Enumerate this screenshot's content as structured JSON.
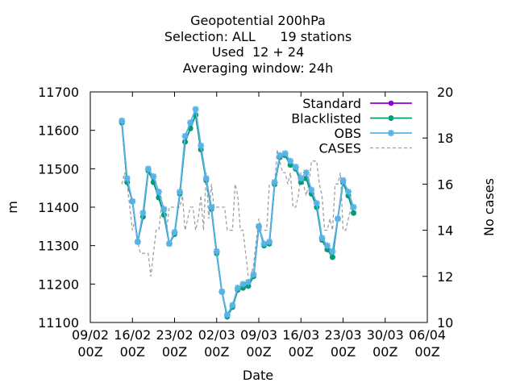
{
  "chart_data": {
    "type": "line",
    "title_lines": [
      "Geopotential 200hPa",
      "Selection: ALL      19 stations",
      "Used  12 + 24",
      "Averaging window: 24h"
    ],
    "xlabel": "Date",
    "ylabel": "m",
    "y2label": "No cases",
    "xlim": [
      0,
      32
    ],
    "ylim": [
      11100,
      11700
    ],
    "y2lim": [
      10,
      20
    ],
    "x_unit": "days since 09/02 00Z",
    "x_ticks": [
      {
        "x": 0,
        "line1": "09/02",
        "line2": "00Z"
      },
      {
        "x": 4,
        "line1": "16/02",
        "line2": "00Z"
      },
      {
        "x": 8,
        "line1": "23/02",
        "line2": "00Z"
      },
      {
        "x": 12,
        "line1": "02/03",
        "line2": "00Z"
      },
      {
        "x": 16,
        "line1": "09/03",
        "line2": "00Z"
      },
      {
        "x": 20,
        "line1": "16/03",
        "line2": "00Z"
      },
      {
        "x": 24,
        "line1": "23/03",
        "line2": "00Z"
      },
      {
        "x": 28,
        "line1": "30/03",
        "line2": "00Z"
      },
      {
        "x": 32,
        "line1": "06/04",
        "line2": "00Z"
      }
    ],
    "y_ticks": [
      "11100",
      "11200",
      "11300",
      "11400",
      "11500",
      "11600",
      "11700"
    ],
    "y2_ticks": [
      "10",
      "12",
      "14",
      "16",
      "18",
      "20"
    ],
    "legend_position": "top-right",
    "series": [
      {
        "name": "Standard",
        "color": "#9400d3",
        "style": "solid",
        "marker": "circle",
        "axis": "y",
        "points": [
          [
            3.0,
            11620
          ],
          [
            3.5,
            11465
          ],
          [
            4.0,
            11415
          ],
          [
            4.5,
            11310
          ],
          [
            5.0,
            11375
          ],
          [
            5.5,
            11495
          ],
          [
            6.0,
            11465
          ],
          [
            6.5,
            11425
          ],
          [
            7.0,
            11380
          ],
          [
            7.5,
            11305
          ],
          [
            8.0,
            11330
          ],
          [
            8.5,
            11435
          ],
          [
            9.0,
            11570
          ],
          [
            9.5,
            11605
          ],
          [
            10.0,
            11640
          ],
          [
            10.5,
            11550
          ],
          [
            11.0,
            11470
          ],
          [
            11.5,
            11395
          ],
          [
            12.0,
            11280
          ],
          [
            12.5,
            11180
          ],
          [
            13.0,
            11115
          ],
          [
            13.5,
            11140
          ],
          [
            14.0,
            11185
          ],
          [
            14.5,
            11190
          ],
          [
            15.0,
            11195
          ],
          [
            15.5,
            11220
          ],
          [
            16.0,
            11350
          ],
          [
            16.5,
            11300
          ],
          [
            17.0,
            11305
          ],
          [
            17.5,
            11460
          ],
          [
            18.0,
            11530
          ],
          [
            18.5,
            11535
          ],
          [
            19.0,
            11510
          ],
          [
            19.5,
            11500
          ],
          [
            20.0,
            11465
          ],
          [
            20.5,
            11475
          ],
          [
            21.0,
            11435
          ],
          [
            21.5,
            11400
          ],
          [
            22.0,
            11315
          ],
          [
            22.5,
            11290
          ],
          [
            23.0,
            11270
          ],
          [
            23.5,
            11370
          ],
          [
            24.0,
            11465
          ],
          [
            24.5,
            11430
          ],
          [
            25.0,
            11385
          ]
        ]
      },
      {
        "name": "Blacklisted",
        "color": "#009e73",
        "style": "solid",
        "marker": "cross",
        "axis": "y",
        "points": [
          [
            3.0,
            11620
          ],
          [
            3.5,
            11465
          ],
          [
            4.0,
            11415
          ],
          [
            4.5,
            11310
          ],
          [
            5.0,
            11375
          ],
          [
            5.5,
            11495
          ],
          [
            6.0,
            11465
          ],
          [
            6.5,
            11425
          ],
          [
            7.0,
            11380
          ],
          [
            7.5,
            11305
          ],
          [
            8.0,
            11330
          ],
          [
            8.5,
            11435
          ],
          [
            9.0,
            11570
          ],
          [
            9.5,
            11605
          ],
          [
            10.0,
            11640
          ],
          [
            10.5,
            11550
          ],
          [
            11.0,
            11470
          ],
          [
            11.5,
            11395
          ],
          [
            12.0,
            11280
          ],
          [
            12.5,
            11180
          ],
          [
            13.0,
            11115
          ],
          [
            13.5,
            11140
          ],
          [
            14.0,
            11185
          ],
          [
            14.5,
            11190
          ],
          [
            15.0,
            11195
          ],
          [
            15.5,
            11220
          ],
          [
            16.0,
            11350
          ],
          [
            16.5,
            11300
          ],
          [
            17.0,
            11305
          ],
          [
            17.5,
            11460
          ],
          [
            18.0,
            11530
          ],
          [
            18.5,
            11535
          ],
          [
            19.0,
            11510
          ],
          [
            19.5,
            11500
          ],
          [
            20.0,
            11465
          ],
          [
            20.5,
            11475
          ],
          [
            21.0,
            11435
          ],
          [
            21.5,
            11400
          ],
          [
            22.0,
            11315
          ],
          [
            22.5,
            11290
          ],
          [
            23.0,
            11270
          ],
          [
            23.5,
            11370
          ],
          [
            24.0,
            11465
          ],
          [
            24.5,
            11430
          ],
          [
            25.0,
            11385
          ]
        ]
      },
      {
        "name": "OBS",
        "color": "#56b4e9",
        "style": "solid",
        "marker": "star",
        "axis": "y",
        "points": [
          [
            3.0,
            11625
          ],
          [
            3.5,
            11475
          ],
          [
            4.0,
            11415
          ],
          [
            4.5,
            11310
          ],
          [
            5.0,
            11385
          ],
          [
            5.5,
            11500
          ],
          [
            6.0,
            11480
          ],
          [
            6.5,
            11440
          ],
          [
            7.0,
            11395
          ],
          [
            7.5,
            11305
          ],
          [
            8.0,
            11335
          ],
          [
            8.5,
            11440
          ],
          [
            9.0,
            11585
          ],
          [
            9.5,
            11620
          ],
          [
            10.0,
            11655
          ],
          [
            10.5,
            11560
          ],
          [
            11.0,
            11475
          ],
          [
            11.5,
            11400
          ],
          [
            12.0,
            11285
          ],
          [
            12.5,
            11180
          ],
          [
            13.0,
            11120
          ],
          [
            13.5,
            11145
          ],
          [
            14.0,
            11190
          ],
          [
            14.5,
            11200
          ],
          [
            15.0,
            11205
          ],
          [
            15.5,
            11225
          ],
          [
            16.0,
            11350
          ],
          [
            16.5,
            11305
          ],
          [
            17.0,
            11310
          ],
          [
            17.5,
            11465
          ],
          [
            18.0,
            11535
          ],
          [
            18.5,
            11540
          ],
          [
            19.0,
            11520
          ],
          [
            19.5,
            11505
          ],
          [
            20.0,
            11475
          ],
          [
            20.5,
            11490
          ],
          [
            21.0,
            11445
          ],
          [
            21.5,
            11410
          ],
          [
            22.0,
            11320
          ],
          [
            22.5,
            11300
          ],
          [
            23.0,
            11285
          ],
          [
            23.5,
            11370
          ],
          [
            24.0,
            11470
          ],
          [
            24.5,
            11440
          ],
          [
            25.0,
            11400
          ]
        ]
      },
      {
        "name": "CASES",
        "color": "#a0a0a0",
        "style": "dashed",
        "marker": "none",
        "axis": "y2",
        "points": [
          [
            3.0,
            16.0
          ],
          [
            3.25,
            16.5
          ],
          [
            3.5,
            16.0
          ],
          [
            3.75,
            15.0
          ],
          [
            4.0,
            14.0
          ],
          [
            4.25,
            14.5
          ],
          [
            4.5,
            13.5
          ],
          [
            4.75,
            13.0
          ],
          [
            5.0,
            13.0
          ],
          [
            5.25,
            13.0
          ],
          [
            5.5,
            13.0
          ],
          [
            5.75,
            12.0
          ],
          [
            6.0,
            13.0
          ],
          [
            6.25,
            14.0
          ],
          [
            6.5,
            14.0
          ],
          [
            6.75,
            15.0
          ],
          [
            7.0,
            15.0
          ],
          [
            7.25,
            14.0
          ],
          [
            7.5,
            15.0
          ],
          [
            7.75,
            15.0
          ],
          [
            8.0,
            15.0
          ],
          [
            8.25,
            15.0
          ],
          [
            8.5,
            15.0
          ],
          [
            8.75,
            15.5
          ],
          [
            9.0,
            14.0
          ],
          [
            9.25,
            14.5
          ],
          [
            9.5,
            15.0
          ],
          [
            9.75,
            15.0
          ],
          [
            10.0,
            14.0
          ],
          [
            10.25,
            14.5
          ],
          [
            10.5,
            15.5
          ],
          [
            10.75,
            14.0
          ],
          [
            11.0,
            16.5
          ],
          [
            11.25,
            14.5
          ],
          [
            11.5,
            16.0
          ],
          [
            11.75,
            15.0
          ],
          [
            12.0,
            15.0
          ],
          [
            12.25,
            15.0
          ],
          [
            12.5,
            15.0
          ],
          [
            12.75,
            15.0
          ],
          [
            13.0,
            14.0
          ],
          [
            13.25,
            14.0
          ],
          [
            13.5,
            14.0
          ],
          [
            13.75,
            16.0
          ],
          [
            14.0,
            15.5
          ],
          [
            14.25,
            14.0
          ],
          [
            14.5,
            14.0
          ],
          [
            14.75,
            13.0
          ],
          [
            15.0,
            12.0
          ],
          [
            15.25,
            12.0
          ],
          [
            15.5,
            12.5
          ],
          [
            15.75,
            13.5
          ],
          [
            16.0,
            14.5
          ],
          [
            16.25,
            14.0
          ],
          [
            16.5,
            14.0
          ],
          [
            16.75,
            14.0
          ],
          [
            17.0,
            16.0
          ],
          [
            17.25,
            16.0
          ],
          [
            17.5,
            16.0
          ],
          [
            17.75,
            17.5
          ],
          [
            18.0,
            17.0
          ],
          [
            18.25,
            16.5
          ],
          [
            18.5,
            16.5
          ],
          [
            18.75,
            16.0
          ],
          [
            19.0,
            16.5
          ],
          [
            19.25,
            15.0
          ],
          [
            19.5,
            15.0
          ],
          [
            19.75,
            15.5
          ],
          [
            20.0,
            16.5
          ],
          [
            20.25,
            16.0
          ],
          [
            20.5,
            15.5
          ],
          [
            20.75,
            16.0
          ],
          [
            21.0,
            17.0
          ],
          [
            21.25,
            17.0
          ],
          [
            21.5,
            17.0
          ],
          [
            21.75,
            16.0
          ],
          [
            22.0,
            15.5
          ],
          [
            22.25,
            14.0
          ],
          [
            22.5,
            14.0
          ],
          [
            22.75,
            14.5
          ],
          [
            23.0,
            14.0
          ],
          [
            23.25,
            16.0
          ],
          [
            23.5,
            16.0
          ],
          [
            23.75,
            16.5
          ],
          [
            24.0,
            14.0
          ],
          [
            24.25,
            14.0
          ],
          [
            24.5,
            14.5
          ],
          [
            24.75,
            15.0
          ],
          [
            25.0,
            15.0
          ]
        ]
      }
    ]
  }
}
